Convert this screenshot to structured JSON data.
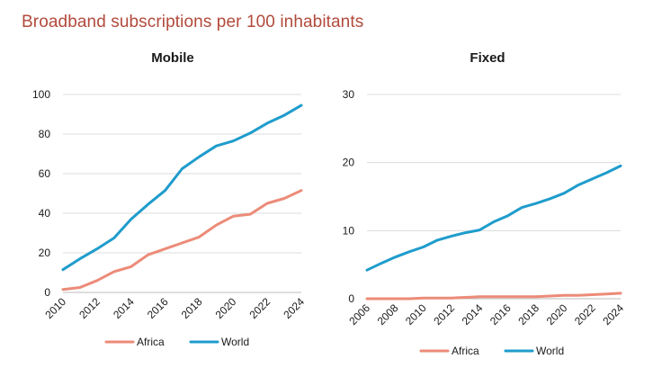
{
  "page_title": "Broadband subscriptions per 100 inhabitants",
  "colors": {
    "title": "#b24a3c",
    "africa": "#ec8b78",
    "world": "#1f9ccc",
    "grid": "#dcdcdc",
    "axis": "#bdbdbd"
  },
  "chart_data": [
    {
      "type": "line",
      "title": "Mobile",
      "xlabel": "",
      "ylabel": "",
      "xlim": [
        2010,
        2024
      ],
      "ylim": [
        0,
        100
      ],
      "yticks": [
        0,
        20,
        40,
        60,
        80,
        100
      ],
      "xticks": [
        2010,
        2012,
        2014,
        2016,
        2018,
        2020,
        2022,
        2024
      ],
      "grid": true,
      "legend_position": "bottom",
      "series": [
        {
          "name": "Africa",
          "x": [
            2010,
            2011,
            2012,
            2013,
            2014,
            2015,
            2016,
            2017,
            2018,
            2019,
            2020,
            2021,
            2022,
            2023,
            2024
          ],
          "values": [
            1.5,
            2.5,
            6,
            10.5,
            13,
            19,
            22,
            25,
            28,
            34,
            38.5,
            39.5,
            45,
            47.5,
            51.5
          ]
        },
        {
          "name": "World",
          "x": [
            2010,
            2011,
            2012,
            2013,
            2014,
            2015,
            2016,
            2017,
            2018,
            2019,
            2020,
            2021,
            2022,
            2023,
            2024
          ],
          "values": [
            11.5,
            17,
            22,
            27.5,
            37,
            44.5,
            51.5,
            62.5,
            68.5,
            74,
            76.5,
            80.5,
            85.5,
            89.5,
            94.5
          ]
        }
      ]
    },
    {
      "type": "line",
      "title": "Fixed",
      "xlabel": "",
      "ylabel": "",
      "xlim": [
        2006,
        2024
      ],
      "ylim": [
        0,
        30
      ],
      "yticks": [
        0,
        10,
        20,
        30
      ],
      "xticks": [
        2006,
        2008,
        2010,
        2012,
        2014,
        2016,
        2018,
        2020,
        2022,
        2024
      ],
      "grid": true,
      "legend_position": "bottom",
      "series": [
        {
          "name": "Africa",
          "x": [
            2006,
            2007,
            2008,
            2009,
            2010,
            2011,
            2012,
            2013,
            2014,
            2015,
            2016,
            2017,
            2018,
            2019,
            2020,
            2021,
            2022,
            2023,
            2024
          ],
          "values": [
            0,
            0,
            0,
            0,
            0.1,
            0.1,
            0.1,
            0.2,
            0.3,
            0.3,
            0.3,
            0.3,
            0.3,
            0.4,
            0.5,
            0.5,
            0.6,
            0.7,
            0.8
          ]
        },
        {
          "name": "World",
          "x": [
            2006,
            2007,
            2008,
            2009,
            2010,
            2011,
            2012,
            2013,
            2014,
            2015,
            2016,
            2017,
            2018,
            2019,
            2020,
            2021,
            2022,
            2023,
            2024
          ],
          "values": [
            4.2,
            5.2,
            6.1,
            6.9,
            7.6,
            8.6,
            9.2,
            9.7,
            10.1,
            11.3,
            12.2,
            13.4,
            14.0,
            14.7,
            15.5,
            16.7,
            17.6,
            18.5,
            19.5
          ]
        }
      ]
    }
  ]
}
